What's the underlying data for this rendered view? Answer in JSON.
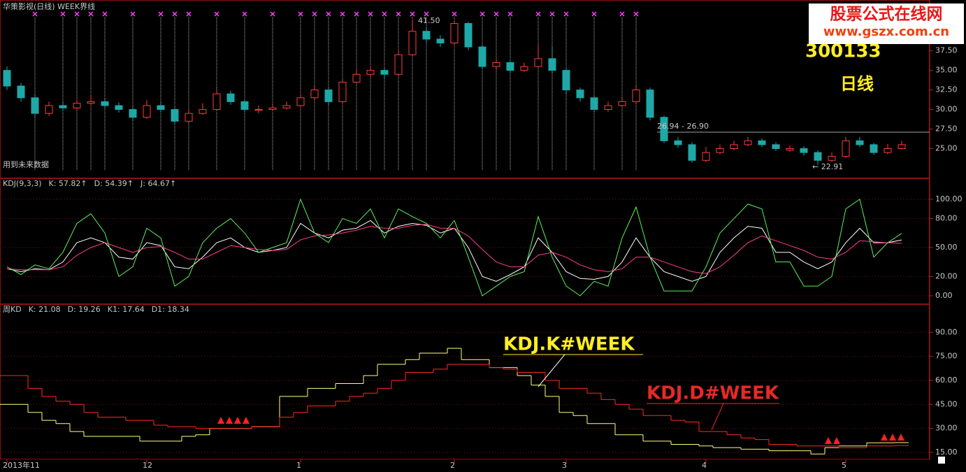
{
  "overlay": {
    "code": "300133",
    "period": "日线"
  },
  "watermark": {
    "name": "股票公式在线网",
    "url": "www.gszx.com.cn"
  },
  "annotations": {
    "high": "41.50",
    "ref": "26.94 - 26.90",
    "low": "← 22.91",
    "note": "用到未来数据",
    "k_week": "KDJ.K#WEEK",
    "d_week": "KDJ.D#WEEK"
  },
  "chart_data": [
    {
      "type": "candlestick",
      "title": "华策影视(日线) WEEK界线",
      "up_color": "#ff3c3c",
      "down_color": "#1fa8a8",
      "ylim": [
        21.2,
        44
      ],
      "yticks": [
        {
          "value": 25,
          "label": "25.00"
        },
        {
          "value": 27.5,
          "label": "27.50"
        },
        {
          "value": 30,
          "label": "30.00"
        },
        {
          "value": 32.5,
          "label": "32.50"
        },
        {
          "value": 35,
          "label": "35.00"
        },
        {
          "value": 37.5,
          "label": "37.50"
        }
      ],
      "signals": [
        2,
        4,
        5,
        6,
        7,
        9,
        11,
        12,
        13,
        15,
        17,
        19,
        21,
        22,
        23,
        24,
        25,
        26,
        27,
        28,
        29,
        30,
        32,
        34,
        35,
        36,
        38,
        39,
        40,
        42,
        44,
        45
      ],
      "open": [
        35.0,
        33.0,
        31.5,
        29.5,
        30.5,
        30.2,
        30.8,
        31.0,
        30.5,
        30.0,
        29.0,
        30.5,
        30.0,
        28.5,
        29.5,
        30.0,
        32.0,
        31.0,
        29.9,
        30.0,
        30.2,
        30.5,
        31.5,
        32.5,
        31.0,
        33.5,
        34.5,
        35.0,
        34.5,
        37.0,
        40.0,
        39.0,
        38.5,
        41.0,
        38.0,
        35.5,
        36.0,
        35.0,
        35.5,
        36.5,
        35.0,
        32.5,
        31.5,
        30.0,
        30.5,
        31.0,
        32.5,
        29.0,
        26.0,
        25.5,
        23.5,
        24.5,
        25.0,
        25.5,
        26.0,
        25.5,
        24.8,
        25.0,
        24.5,
        23.5,
        24.0,
        26.0,
        25.5,
        24.5,
        25.0
      ],
      "high": [
        35.5,
        33.4,
        32.0,
        31.0,
        31.0,
        31.3,
        31.8,
        31.4,
        30.9,
        30.3,
        31.2,
        31.0,
        30.3,
        30.0,
        30.8,
        32.8,
        32.4,
        31.3,
        30.5,
        30.7,
        31.0,
        32.0,
        33.0,
        32.8,
        34.0,
        35.2,
        35.6,
        35.4,
        37.6,
        41.5,
        40.6,
        39.5,
        41.3,
        41.2,
        38.3,
        36.5,
        36.3,
        36.0,
        38.3,
        38.0,
        35.3,
        32.8,
        31.8,
        31.0,
        31.6,
        33.0,
        32.8,
        29.2,
        26.5,
        25.8,
        25.2,
        25.5,
        26.0,
        26.5,
        26.3,
        25.8,
        25.4,
        25.3,
        24.8,
        24.5,
        26.5,
        26.5,
        25.7,
        25.6,
        26.0
      ],
      "low": [
        32.5,
        31.0,
        29.0,
        29.2,
        29.8,
        29.9,
        30.5,
        30.1,
        29.6,
        28.6,
        28.8,
        29.6,
        28.0,
        28.2,
        29.3,
        29.8,
        30.6,
        29.6,
        29.5,
        29.8,
        30.0,
        30.3,
        31.3,
        30.6,
        30.8,
        33.3,
        34.2,
        34.0,
        34.3,
        36.8,
        38.5,
        38.0,
        38.3,
        37.6,
        35.2,
        35.0,
        34.6,
        34.8,
        35.3,
        34.7,
        32.0,
        31.0,
        29.6,
        29.7,
        30.3,
        30.8,
        28.6,
        25.7,
        25.1,
        23.2,
        23.3,
        24.3,
        24.8,
        25.3,
        25.2,
        24.7,
        24.6,
        24.1,
        22.91,
        23.3,
        23.8,
        25.2,
        24.2,
        24.3,
        24.9
      ],
      "close": [
        33.0,
        31.5,
        29.5,
        30.5,
        30.2,
        30.8,
        31.0,
        30.5,
        30.0,
        29.0,
        30.5,
        30.0,
        28.5,
        29.5,
        30.0,
        32.0,
        31.0,
        30.0,
        30.0,
        30.2,
        30.5,
        31.5,
        32.5,
        31.0,
        33.5,
        34.5,
        35.0,
        34.5,
        37.0,
        40.0,
        39.0,
        38.5,
        41.0,
        38.0,
        35.5,
        36.0,
        35.0,
        35.5,
        36.5,
        35.0,
        32.5,
        31.5,
        30.0,
        30.5,
        31.0,
        32.5,
        29.0,
        26.0,
        25.5,
        23.5,
        24.5,
        25.0,
        25.5,
        26.0,
        25.5,
        25.0,
        25.0,
        24.5,
        23.5,
        24.0,
        26.0,
        25.5,
        24.5,
        25.0,
        25.5
      ]
    },
    {
      "type": "line",
      "title": "KDJ(9,3,3)",
      "grid": true,
      "ylim": [
        -8.7,
        121.7
      ],
      "yticks": [
        {
          "value": 0,
          "label": "0.00"
        },
        {
          "value": 20,
          "label": "20.00"
        },
        {
          "value": 50,
          "label": "50.00"
        },
        {
          "value": 80,
          "label": "80.00"
        },
        {
          "value": 100,
          "label": "100.00"
        }
      ],
      "series": [
        {
          "name": "K",
          "legend_label": "K: 57.82↑",
          "color": "#ffffff",
          "values": [
            28,
            25,
            28,
            27,
            35,
            55,
            60,
            55,
            40,
            38,
            55,
            52,
            30,
            28,
            40,
            55,
            60,
            50,
            45,
            47,
            50,
            75,
            65,
            60,
            68,
            70,
            78,
            65,
            72,
            75,
            73,
            65,
            70,
            50,
            20,
            15,
            22,
            30,
            60,
            45,
            25,
            18,
            17,
            20,
            35,
            60,
            40,
            25,
            20,
            15,
            20,
            45,
            60,
            72,
            70,
            45,
            45,
            35,
            28,
            35,
            55,
            70,
            55,
            55,
            57.82
          ]
        },
        {
          "name": "D",
          "legend_label": "D: 54.39↑",
          "color": "#ff3c8c",
          "values": [
            28,
            27,
            27,
            27,
            30,
            42,
            50,
            55,
            50,
            45,
            50,
            51,
            45,
            38,
            38,
            45,
            52,
            50,
            48,
            47,
            48,
            58,
            62,
            63,
            65,
            68,
            72,
            70,
            70,
            73,
            74,
            70,
            70,
            62,
            48,
            35,
            30,
            30,
            42,
            45,
            40,
            32,
            27,
            25,
            28,
            40,
            40,
            35,
            30,
            25,
            23,
            30,
            42,
            55,
            62,
            57,
            52,
            47,
            40,
            38,
            45,
            57,
            56,
            55,
            54.39
          ]
        },
        {
          "name": "J",
          "legend_label": "J: 64.67↑",
          "color": "#5cf05c",
          "values": [
            30,
            22,
            32,
            28,
            45,
            75,
            85,
            65,
            20,
            30,
            70,
            60,
            10,
            20,
            55,
            70,
            80,
            65,
            45,
            50,
            55,
            100,
            65,
            55,
            80,
            75,
            90,
            60,
            90,
            82,
            75,
            60,
            78,
            40,
            0,
            10,
            20,
            25,
            82,
            40,
            10,
            0,
            15,
            10,
            60,
            92,
            40,
            5,
            5,
            5,
            30,
            65,
            80,
            95,
            90,
            35,
            35,
            10,
            10,
            20,
            90,
            100,
            40,
            55,
            64.67
          ]
        }
      ]
    },
    {
      "type": "step",
      "title": "周KD",
      "grid": true,
      "ylim": [
        10.6,
        107.6
      ],
      "yticks": [
        {
          "value": 15,
          "label": "15.00"
        },
        {
          "value": 30,
          "label": "30.00"
        },
        {
          "value": 45,
          "label": "45.00"
        },
        {
          "value": 60,
          "label": "60.00"
        },
        {
          "value": 75,
          "label": "75.00"
        },
        {
          "value": 90,
          "label": "90.00"
        }
      ],
      "xticks": [
        {
          "value": 0,
          "label": "2013年11"
        },
        {
          "value": 10,
          "label": "12"
        },
        {
          "value": 21,
          "label": "1"
        },
        {
          "value": 32,
          "label": "2"
        },
        {
          "value": 40,
          "label": "3"
        },
        {
          "value": 50,
          "label": "4"
        },
        {
          "value": 60,
          "label": "5"
        }
      ],
      "readouts": [
        {
          "label": "K: 21.08",
          "color": "#ffff66"
        },
        {
          "label": "D: 19.26",
          "color": "#ff3c3c"
        },
        {
          "label": "K1: 17.64",
          "color": "#5cf05c"
        },
        {
          "label": "D1: 18.34",
          "color": "#3c8cff"
        }
      ],
      "series": [
        {
          "name": "K",
          "color": "#ffff80",
          "values": [
            45,
            45,
            40,
            35,
            33,
            28,
            25,
            25,
            25,
            25,
            22,
            22,
            22,
            25,
            26,
            30,
            30,
            30,
            31,
            31,
            50,
            50,
            55,
            55,
            58,
            58,
            63,
            70,
            70,
            73,
            77,
            77,
            80,
            73,
            73,
            68,
            68,
            63,
            57,
            50,
            40,
            38,
            33,
            33,
            26,
            26,
            22,
            22,
            20,
            20,
            19,
            18,
            18,
            17,
            17,
            16,
            16,
            16,
            14,
            18,
            19,
            19,
            21,
            21,
            21.08
          ]
        },
        {
          "name": "D",
          "color": "#ff2828",
          "values": [
            63,
            63,
            55,
            50,
            47,
            45,
            40,
            37,
            37,
            35,
            35,
            32,
            31,
            31,
            30,
            30,
            30,
            30,
            31,
            31,
            37,
            40,
            44,
            44,
            47,
            50,
            52,
            55,
            60,
            65,
            65,
            67,
            70,
            70,
            70,
            68,
            67,
            65,
            65,
            60,
            55,
            55,
            52,
            48,
            45,
            42,
            38,
            38,
            35,
            34,
            28,
            28,
            26,
            24,
            23,
            20,
            20,
            19,
            19,
            19,
            18,
            18,
            19,
            19,
            19.26
          ]
        }
      ]
    }
  ]
}
